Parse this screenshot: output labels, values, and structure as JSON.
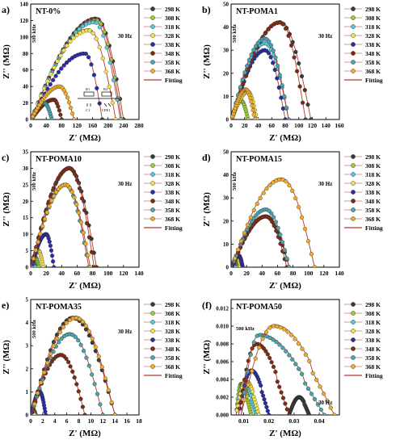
{
  "series_colors": [
    "#3a3a3a",
    "#9ccc3c",
    "#56c8e0",
    "#f2e24a",
    "#2c2e9e",
    "#7a2f14",
    "#4aa3b0",
    "#eeab2c"
  ],
  "fit_color": "#b03a2e",
  "legend_labels": [
    "298 K",
    "308 K",
    "318 K",
    "328 K",
    "338 K",
    "348 K",
    "358 K",
    "368 K",
    "Fitting"
  ],
  "axis_labels": {
    "x": "Z' (MΩ)",
    "y": "Z'' (MΩ)"
  },
  "panels": [
    {
      "letter": "a)",
      "title": "NT-0%",
      "x_ticks": [
        "0",
        "40",
        "80",
        "120",
        "160",
        "200",
        "240",
        "280"
      ],
      "y_ticks": [
        "0",
        "20",
        "40",
        "60",
        "80",
        "100",
        "120",
        "140"
      ],
      "annotations": {
        "high_f": "500 kHz",
        "low_f": "30 Hz"
      },
      "inset": {
        "R1": "R1",
        "C1": "C1",
        "R2": "R2",
        "CPE1": "CPE1"
      },
      "chart_data": {
        "type": "scatter",
        "xlim": [
          0,
          280
        ],
        "ylim": [
          0,
          140
        ],
        "series": [
          {
            "name": "298 K",
            "peak_x": 170,
            "peak_y": 122,
            "max_x": 240
          },
          {
            "name": "308 K",
            "peak_x": 170,
            "peak_y": 120,
            "max_x": 235
          },
          {
            "name": "318 K",
            "peak_x": 165,
            "peak_y": 118,
            "max_x": 232
          },
          {
            "name": "328 K",
            "peak_x": 150,
            "peak_y": 108,
            "max_x": 220
          },
          {
            "name": "338 K",
            "peak_x": 140,
            "peak_y": 80,
            "max_x": 185
          },
          {
            "name": "348 K",
            "peak_x": 60,
            "peak_y": 24,
            "max_x": 80
          },
          {
            "name": "358 K",
            "peak_x": 35,
            "peak_y": 20,
            "max_x": 55
          },
          {
            "name": "368 K",
            "peak_x": 75,
            "peak_y": 40,
            "max_x": 112
          }
        ]
      }
    },
    {
      "letter": "b)",
      "title": "NT-POMA1",
      "x_ticks": [
        "0",
        "20",
        "40",
        "60",
        "80",
        "100",
        "120",
        "140",
        "160"
      ],
      "y_ticks": [
        "0",
        "10",
        "20",
        "30",
        "40",
        "50"
      ],
      "annotations": {
        "high_f": "500 kHz",
        "low_f": "30 Hz"
      },
      "chart_data": {
        "type": "scatter",
        "xlim": [
          0,
          160
        ],
        "ylim": [
          0,
          50
        ],
        "series": [
          {
            "name": "298 K",
            "peak_x": 72,
            "peak_y": 42,
            "max_x": 118
          },
          {
            "name": "308 K",
            "peak_x": 15,
            "peak_y": 8,
            "max_x": 25
          },
          {
            "name": "318 K",
            "peak_x": 50,
            "peak_y": 33,
            "max_x": 85
          },
          {
            "name": "328 K",
            "peak_x": 25,
            "peak_y": 12,
            "max_x": 38
          },
          {
            "name": "338 K",
            "peak_x": 50,
            "peak_y": 30,
            "max_x": 80
          },
          {
            "name": "348 K",
            "peak_x": 72,
            "peak_y": 42,
            "max_x": 110
          },
          {
            "name": "358 K",
            "peak_x": 50,
            "peak_y": 35,
            "max_x": 85
          },
          {
            "name": "368 K",
            "peak_x": 22,
            "peak_y": 13,
            "max_x": 35
          }
        ]
      }
    },
    {
      "letter": "c)",
      "title": "NT-POMA10",
      "x_ticks": [
        "0",
        "20",
        "40",
        "60",
        "80",
        "100",
        "120",
        "140"
      ],
      "y_ticks": [
        "0",
        "5",
        "10",
        "15",
        "20",
        "25",
        "30",
        "35"
      ],
      "annotations": {
        "high_f": "500 kHz",
        "low_f": "30 Hz"
      },
      "chart_data": {
        "type": "scatter",
        "xlim": [
          0,
          140
        ],
        "ylim": [
          0,
          35
        ],
        "series": [
          {
            "name": "298 K",
            "peak_x": 50,
            "peak_y": 30,
            "max_x": 85
          },
          {
            "name": "308 K",
            "peak_x": 6,
            "peak_y": 3,
            "max_x": 10
          },
          {
            "name": "318 K",
            "peak_x": 3,
            "peak_y": 1.5,
            "max_x": 6
          },
          {
            "name": "328 K",
            "peak_x": 10,
            "peak_y": 5,
            "max_x": 16
          },
          {
            "name": "338 K",
            "peak_x": 20,
            "peak_y": 10,
            "max_x": 30
          },
          {
            "name": "348 K",
            "peak_x": 50,
            "peak_y": 30,
            "max_x": 82
          },
          {
            "name": "358 K",
            "peak_x": 45,
            "peak_y": 25,
            "max_x": 75
          },
          {
            "name": "368 K",
            "peak_x": 45,
            "peak_y": 25,
            "max_x": 77
          }
        ]
      }
    },
    {
      "letter": "d)",
      "title": "NT-POMA15",
      "x_ticks": [
        "0",
        "20",
        "40",
        "60",
        "80",
        "100",
        "120",
        "140"
      ],
      "y_ticks": [
        "0",
        "10",
        "20",
        "30",
        "40",
        "50"
      ],
      "annotations": {
        "high_f": "500 kHz",
        "low_f": "30 Hz"
      },
      "chart_data": {
        "type": "scatter",
        "xlim": [
          0,
          140
        ],
        "ylim": [
          0,
          50
        ],
        "series": [
          {
            "name": "298 K",
            "peak_x": 45,
            "peak_y": 22,
            "max_x": 75
          },
          {
            "name": "308 K",
            "peak_x": 5,
            "peak_y": 2,
            "max_x": 8
          },
          {
            "name": "318 K",
            "peak_x": 3,
            "peak_y": 1.5,
            "max_x": 5
          },
          {
            "name": "328 K",
            "peak_x": 8,
            "peak_y": 4,
            "max_x": 12
          },
          {
            "name": "338 K",
            "peak_x": 10,
            "peak_y": 5,
            "max_x": 15
          },
          {
            "name": "348 K",
            "peak_x": 45,
            "peak_y": 22,
            "max_x": 72
          },
          {
            "name": "358 K",
            "peak_x": 45,
            "peak_y": 25,
            "max_x": 75
          },
          {
            "name": "368 K",
            "peak_x": 65,
            "peak_y": 38,
            "max_x": 108
          }
        ]
      }
    },
    {
      "letter": "e)",
      "title": "NT-POMA35",
      "x_ticks": [
        "0",
        "2",
        "4",
        "6",
        "8",
        "10",
        "12",
        "14",
        "16",
        "18"
      ],
      "y_ticks": [
        "0",
        "1",
        "2",
        "3",
        "4",
        "5"
      ],
      "annotations": {
        "high_f": "500 kHz",
        "low_f": "30 Hz"
      },
      "chart_data": {
        "type": "scatter",
        "xlim": [
          0,
          18
        ],
        "ylim": [
          0,
          5
        ],
        "series": [
          {
            "name": "298 K",
            "peak_x": 7,
            "peak_y": 4.2,
            "max_x": 14
          },
          {
            "name": "308 K",
            "peak_x": 0.5,
            "peak_y": 0.2,
            "max_x": 0.8
          },
          {
            "name": "318 K",
            "peak_x": 0.5,
            "peak_y": 0.1,
            "max_x": 0.7
          },
          {
            "name": "328 K",
            "peak_x": 0.3,
            "peak_y": 0.2,
            "max_x": 0.6
          },
          {
            "name": "338 K",
            "peak_x": 1.5,
            "peak_y": 1.0,
            "max_x": 2.5
          },
          {
            "name": "348 K",
            "peak_x": 5,
            "peak_y": 2.6,
            "max_x": 9
          },
          {
            "name": "358 K",
            "peak_x": 6.5,
            "peak_y": 3.5,
            "max_x": 12
          },
          {
            "name": "368 K",
            "peak_x": 7.5,
            "peak_y": 4.2,
            "max_x": 14
          }
        ]
      }
    },
    {
      "letter": "(f)",
      "title": "NT-POMA50",
      "x_ticks": [
        "0.01",
        "0.02",
        "0.03",
        "0.04"
      ],
      "y_ticks": [
        "0.000",
        "0.002",
        "0.004",
        "0.006",
        "0.008",
        "0.010",
        "0.012"
      ],
      "annotations": {
        "high_f": "500 kHz",
        "low_f": "30 Hz"
      },
      "chart_data": {
        "type": "scatter",
        "xlim": [
          0.005,
          0.048
        ],
        "ylim": [
          0,
          0.013
        ],
        "series": [
          {
            "name": "298 K",
            "start_x": 0.028,
            "peak_x": 0.032,
            "peak_y": 0.002,
            "max_x": 0.036
          },
          {
            "name": "308 K",
            "start_x": 0.007,
            "peak_x": 0.009,
            "peak_y": 0.0035,
            "max_x": 0.013
          },
          {
            "name": "318 K",
            "start_x": 0.007,
            "peak_x": 0.01,
            "peak_y": 0.0035,
            "max_x": 0.015
          },
          {
            "name": "328 K",
            "start_x": 0.007,
            "peak_x": 0.011,
            "peak_y": 0.0038,
            "max_x": 0.016
          },
          {
            "name": "338 K",
            "start_x": 0.008,
            "peak_x": 0.013,
            "peak_y": 0.005,
            "max_x": 0.02
          },
          {
            "name": "348 K",
            "start_x": 0.008,
            "peak_x": 0.015,
            "peak_y": 0.008,
            "max_x": 0.028
          },
          {
            "name": "358 K",
            "start_x": 0.009,
            "peak_x": 0.016,
            "peak_y": 0.009,
            "max_x": 0.042
          },
          {
            "name": "368 K",
            "start_x": 0.009,
            "peak_x": 0.022,
            "peak_y": 0.01,
            "max_x": 0.046
          }
        ]
      }
    }
  ]
}
